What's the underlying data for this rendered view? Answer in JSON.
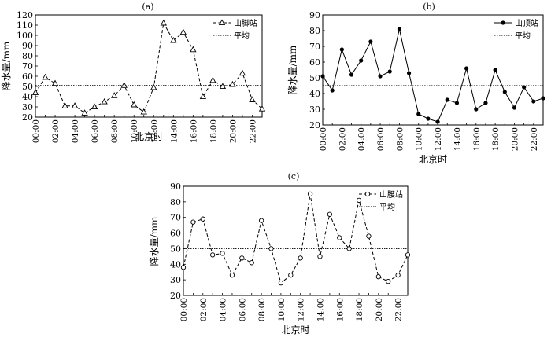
{
  "chart_data": [
    {
      "panel_label": "(a)",
      "type": "line",
      "series": [
        {
          "name": "山脚站",
          "marker": "triangle",
          "line_style": "dashed",
          "values": [
            44,
            59,
            53,
            31,
            31,
            24,
            30,
            35,
            41,
            51,
            32,
            25,
            49,
            112,
            95,
            103,
            86,
            40,
            56,
            50,
            52,
            63,
            37,
            28
          ]
        },
        {
          "name": "平均",
          "line_style": "dotted",
          "values": [
            51
          ]
        }
      ],
      "xlabel": "北京时",
      "ylabel": "降水量/mm",
      "ylim": [
        20,
        120
      ],
      "y_ticks": [
        "20",
        "30",
        "40",
        "50",
        "60",
        "70",
        "80",
        "90",
        "100",
        "110",
        "120"
      ],
      "x_ticks": [
        "00:00",
        "02:00",
        "04:00",
        "06:00",
        "08:00",
        "10:00",
        "12:00",
        "14:00",
        "16:00",
        "18:00",
        "20:00",
        "22:00"
      ],
      "legend_position": "top-right",
      "grid": false
    },
    {
      "panel_label": "(b)",
      "type": "line",
      "series": [
        {
          "name": "山顶站",
          "marker": "filled-circle",
          "line_style": "solid",
          "values": [
            51,
            42,
            68,
            52,
            61,
            73,
            51,
            54,
            81,
            53,
            27,
            24,
            22,
            36,
            34,
            56,
            30,
            34,
            55,
            41,
            31,
            44,
            35,
            37
          ]
        },
        {
          "name": "平均",
          "line_style": "dotted",
          "values": [
            45
          ]
        }
      ],
      "xlabel": "北京时",
      "ylabel": "降水量/mm",
      "ylim": [
        20,
        90
      ],
      "y_ticks": [
        "20",
        "30",
        "40",
        "50",
        "60",
        "70",
        "80",
        "90"
      ],
      "x_ticks": [
        "00:00",
        "02:00",
        "04:00",
        "06:00",
        "08:00",
        "10:00",
        "12:00",
        "14:00",
        "16:00",
        "18:00",
        "20:00",
        "22:00"
      ],
      "legend_position": "top-right",
      "grid": false
    },
    {
      "panel_label": "(c)",
      "type": "line",
      "series": [
        {
          "name": "山腰站",
          "marker": "open-circle",
          "line_style": "dashed",
          "values": [
            38,
            67,
            69,
            46,
            47,
            33,
            44,
            41,
            68,
            50,
            28,
            33,
            44,
            85,
            45,
            72,
            57,
            50,
            81,
            58,
            32,
            29,
            33,
            46
          ]
        },
        {
          "name": "平均",
          "line_style": "dotted",
          "values": [
            50
          ]
        }
      ],
      "xlabel": "北京时",
      "ylabel": "降水量/mm",
      "ylim": [
        20,
        90
      ],
      "y_ticks": [
        "20",
        "30",
        "40",
        "50",
        "60",
        "70",
        "80",
        "90"
      ],
      "x_ticks": [
        "00:00",
        "02:00",
        "04:00",
        "06:00",
        "08:00",
        "10:00",
        "12:00",
        "14:00",
        "16:00",
        "18:00",
        "20:00",
        "22:00"
      ],
      "legend_position": "top-right",
      "grid": false
    }
  ]
}
